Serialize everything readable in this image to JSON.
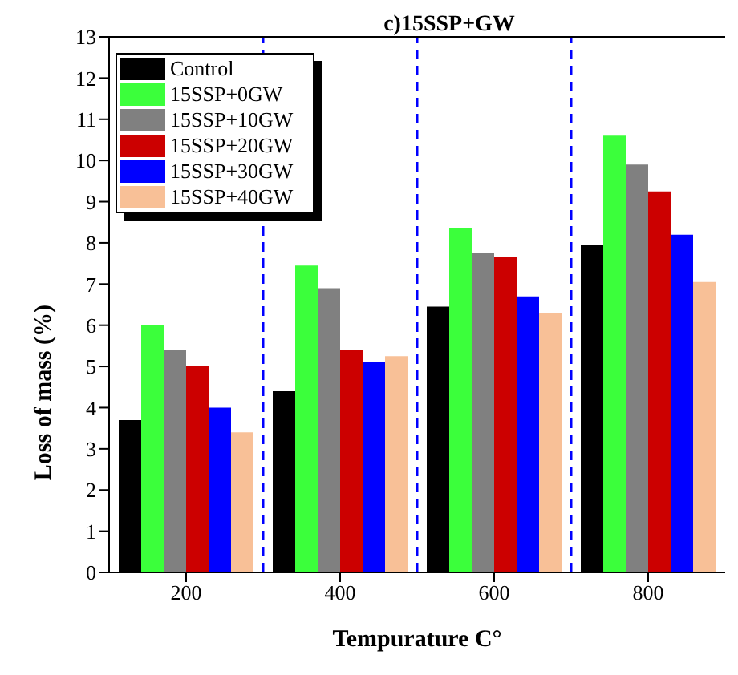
{
  "chart_data": {
    "type": "bar",
    "title": "c)15SSP+GW",
    "xlabel": "Tempurature C°",
    "ylabel": "Loss of mass (%)",
    "x": [
      200,
      400,
      600,
      800
    ],
    "series": [
      {
        "name": "Control",
        "color": "#000000",
        "values": [
          3.7,
          4.4,
          6.45,
          7.95
        ]
      },
      {
        "name": "15SSP+0GW",
        "color": "#3bff3b",
        "values": [
          6.0,
          7.45,
          8.35,
          10.6
        ]
      },
      {
        "name": "15SSP+10GW",
        "color": "#808080",
        "values": [
          5.4,
          6.9,
          7.75,
          9.9
        ]
      },
      {
        "name": "15SSP+20GW",
        "color": "#cc0000",
        "values": [
          5.0,
          5.4,
          7.65,
          9.25
        ]
      },
      {
        "name": "15SSP+30GW",
        "color": "#0000ff",
        "values": [
          4.0,
          5.1,
          6.7,
          8.2
        ]
      },
      {
        "name": "15SSP+40GW",
        "color": "#f8c097",
        "values": [
          3.4,
          5.25,
          6.3,
          7.05
        ]
      }
    ],
    "xlim": [
      100,
      900
    ],
    "xticks": [
      200,
      400,
      600,
      800
    ],
    "ylim": [
      0,
      13
    ],
    "yticks": [
      0,
      1,
      2,
      3,
      4,
      5,
      6,
      7,
      8,
      9,
      10,
      11,
      12,
      13
    ],
    "ref_lines": [
      {
        "axis": "x",
        "value": 300,
        "color": "#0000ff",
        "line_style": "dashed"
      },
      {
        "axis": "x",
        "value": 500,
        "color": "#0000ff",
        "line_style": "dashed"
      },
      {
        "axis": "x",
        "value": 700,
        "color": "#0000ff",
        "line_style": "dashed"
      }
    ],
    "grid": false,
    "legend": "top left"
  }
}
